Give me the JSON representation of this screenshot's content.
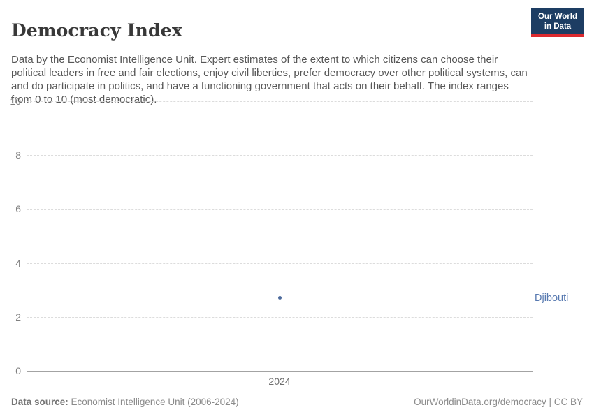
{
  "header": {
    "title": "Democracy Index",
    "subtitle": "Data by the Economist Intelligence Unit. Expert estimates of the extent to which citizens can choose their political leaders in free and fair elections, enjoy civil liberties, prefer democracy over other political systems, can and do participate in politics, and have a functioning government that acts on their behalf. The index ranges from 0 to 10 (most democratic).",
    "logo": {
      "line1": "Our World",
      "line2": "in Data",
      "bg_color": "#1d3d63",
      "bar_color": "#dc2a2f",
      "text_color": "#ffffff"
    }
  },
  "chart_data": {
    "type": "scatter",
    "title": "Democracy Index",
    "x": [
      2024
    ],
    "x_tick_label": "2024",
    "series": [
      {
        "name": "Djibouti",
        "values": [
          2.7
        ],
        "color": "#4c6a9c"
      }
    ],
    "ylim": [
      0,
      10
    ],
    "yticks": [
      0,
      2,
      4,
      6,
      8,
      10
    ],
    "ylabel": "",
    "xlabel": "",
    "grid": "horizontal-dashed",
    "gridline_color": "#dcdcdc",
    "axis_line_color": "#a3a3a3",
    "entity_label": "Djibouti",
    "entity_label_color": "#5779b0"
  },
  "footer": {
    "source_label": "Data source:",
    "source_text": " Economist Intelligence Unit (2006-2024)",
    "link_text": "OurWorldinData.org/democracy",
    "divider": " | ",
    "license_text": "CC BY"
  }
}
